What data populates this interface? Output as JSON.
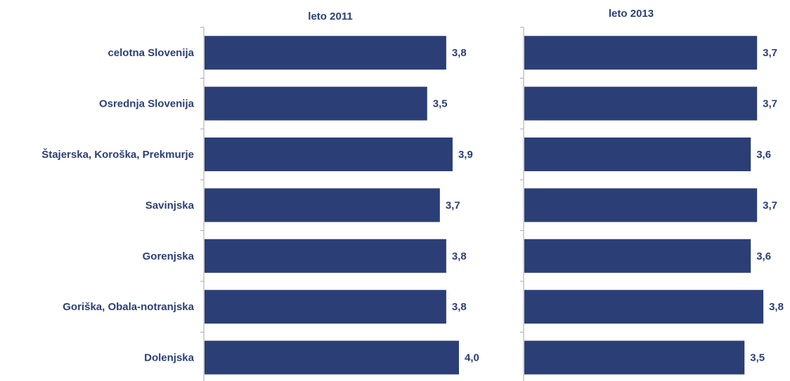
{
  "colors": {
    "bar": "#2B3F76",
    "text": "#2B3F76",
    "axis": "#A6A6A6"
  },
  "chart_data": {
    "type": "bar",
    "orientation": "horizontal",
    "categories": [
      "celotna Slovenija",
      "Osrednja Slovenija",
      "Štajerska, Koroška, Prekmurje",
      "Savinjska",
      "Gorenjska",
      "Goriška, Obala-notranjska",
      "Dolenjska"
    ],
    "panels": [
      {
        "title": "leto 2011",
        "values": [
          3.8,
          3.5,
          3.9,
          3.7,
          3.8,
          3.8,
          4.0
        ],
        "labels": [
          "3,8",
          "3,5",
          "3,9",
          "3,7",
          "3,8",
          "3,8",
          "4,0"
        ],
        "xlim": [
          0,
          4.2
        ]
      },
      {
        "title": "leto 2013",
        "values": [
          3.7,
          3.7,
          3.6,
          3.7,
          3.6,
          3.8,
          3.5
        ],
        "labels": [
          "3,7",
          "3,7",
          "3,6",
          "3,7",
          "3,6",
          "3,8",
          "3,5"
        ],
        "xlim": [
          0,
          4.2
        ]
      }
    ],
    "legend": "none",
    "grid": false
  }
}
